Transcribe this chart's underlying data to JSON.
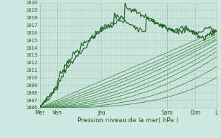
{
  "xlabel": "Pression niveau de la mer( hPa )",
  "ylim": [
    1006,
    1020
  ],
  "yticks": [
    1006,
    1007,
    1008,
    1009,
    1010,
    1011,
    1012,
    1013,
    1014,
    1015,
    1016,
    1017,
    1018,
    1019,
    1020
  ],
  "xtick_labels": [
    "Mer",
    "Ven",
    "Jeu",
    "Sam",
    "Dim",
    "L"
  ],
  "xtick_positions": [
    0.0,
    0.1,
    0.35,
    0.72,
    0.88,
    1.0
  ],
  "day_lines": [
    0.0,
    0.1,
    0.35,
    0.72,
    0.88,
    1.0
  ],
  "bg_color": "#cde8e0",
  "grid_color": "#a8c8be",
  "line_dark": "#1a5c1a",
  "line_mid": "#2d7a2d",
  "n_points": 200
}
